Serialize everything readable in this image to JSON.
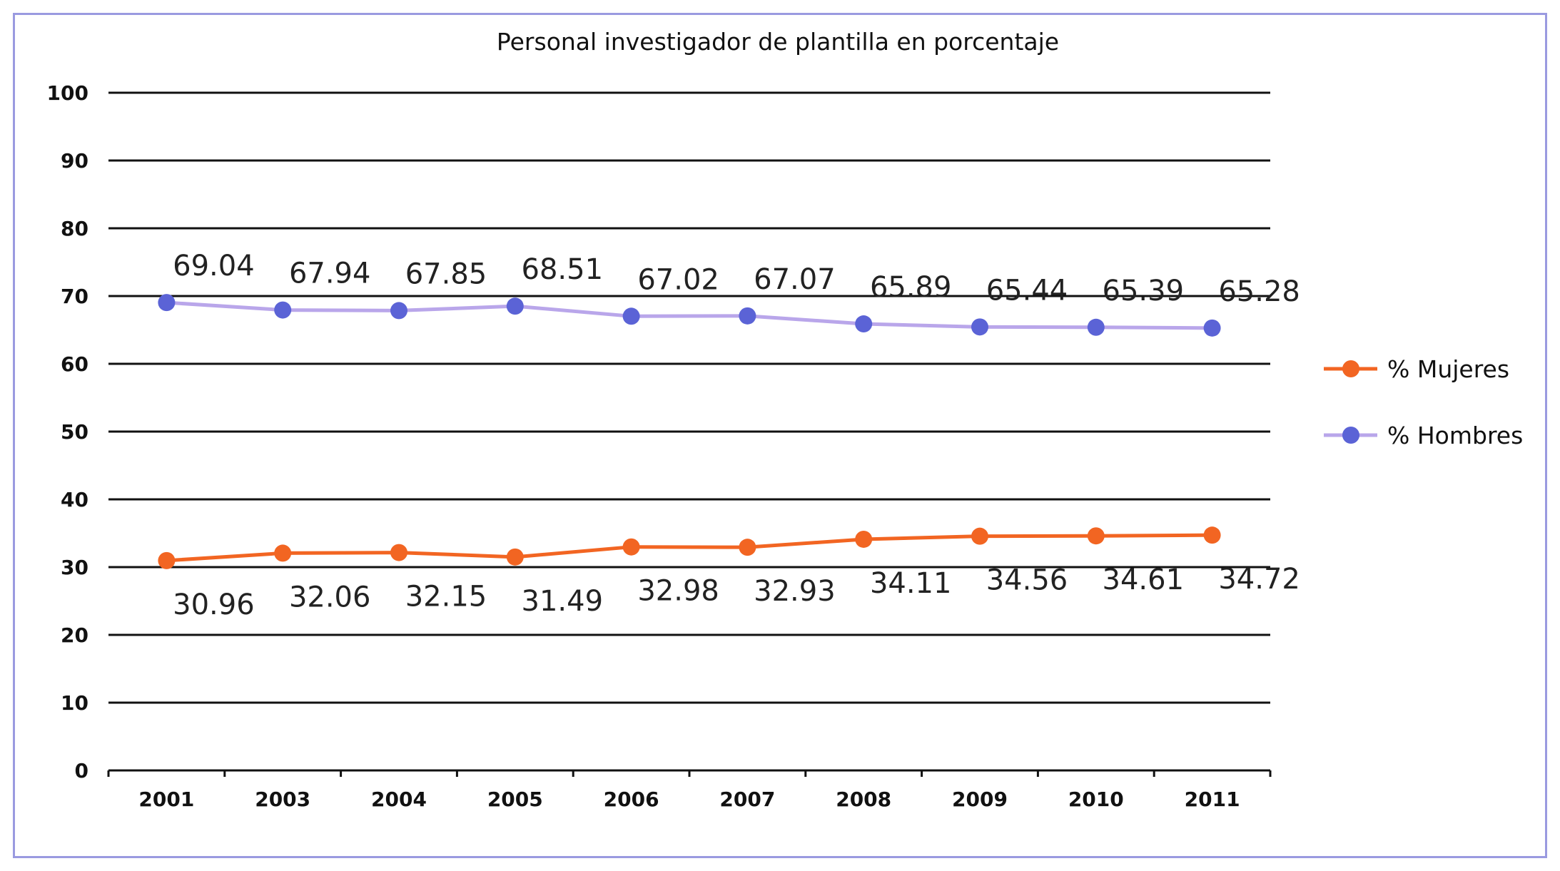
{
  "chart_data": {
    "type": "line",
    "title": "Personal investigador de plantilla en porcentaje",
    "xlabel": "",
    "ylabel": "",
    "categories": [
      "2001",
      "2003",
      "2004",
      "2005",
      "2006",
      "2007",
      "2008",
      "2009",
      "2010",
      "2011"
    ],
    "ylim": [
      0,
      100
    ],
    "yticks": [
      "0",
      "10",
      "20",
      "30",
      "40",
      "50",
      "60",
      "70",
      "80",
      "90",
      "100"
    ],
    "grid": "horizontal",
    "legend_position": "right",
    "series": [
      {
        "name": "% Mujeres",
        "color": "#f26522",
        "label_position": "below",
        "values": [
          30.96,
          32.06,
          32.15,
          31.49,
          32.98,
          32.93,
          34.11,
          34.56,
          34.61,
          34.72
        ],
        "labels": [
          "30.96",
          "32.06",
          "32.15",
          "31.49",
          "32.98",
          "32.93",
          "34.11",
          "34.56",
          "34.61",
          "34.72"
        ]
      },
      {
        "name": "% Hombres",
        "color": "#5b63d6",
        "line_color": "#b9a6ea",
        "label_position": "above",
        "values": [
          69.04,
          67.94,
          67.85,
          68.51,
          67.02,
          67.07,
          65.89,
          65.44,
          65.39,
          65.28
        ],
        "labels": [
          "69.04",
          "67.94",
          "67.85",
          "68.51",
          "67.02",
          "67.07",
          "65.89",
          "65.44",
          "65.39",
          "65.28"
        ]
      }
    ]
  }
}
